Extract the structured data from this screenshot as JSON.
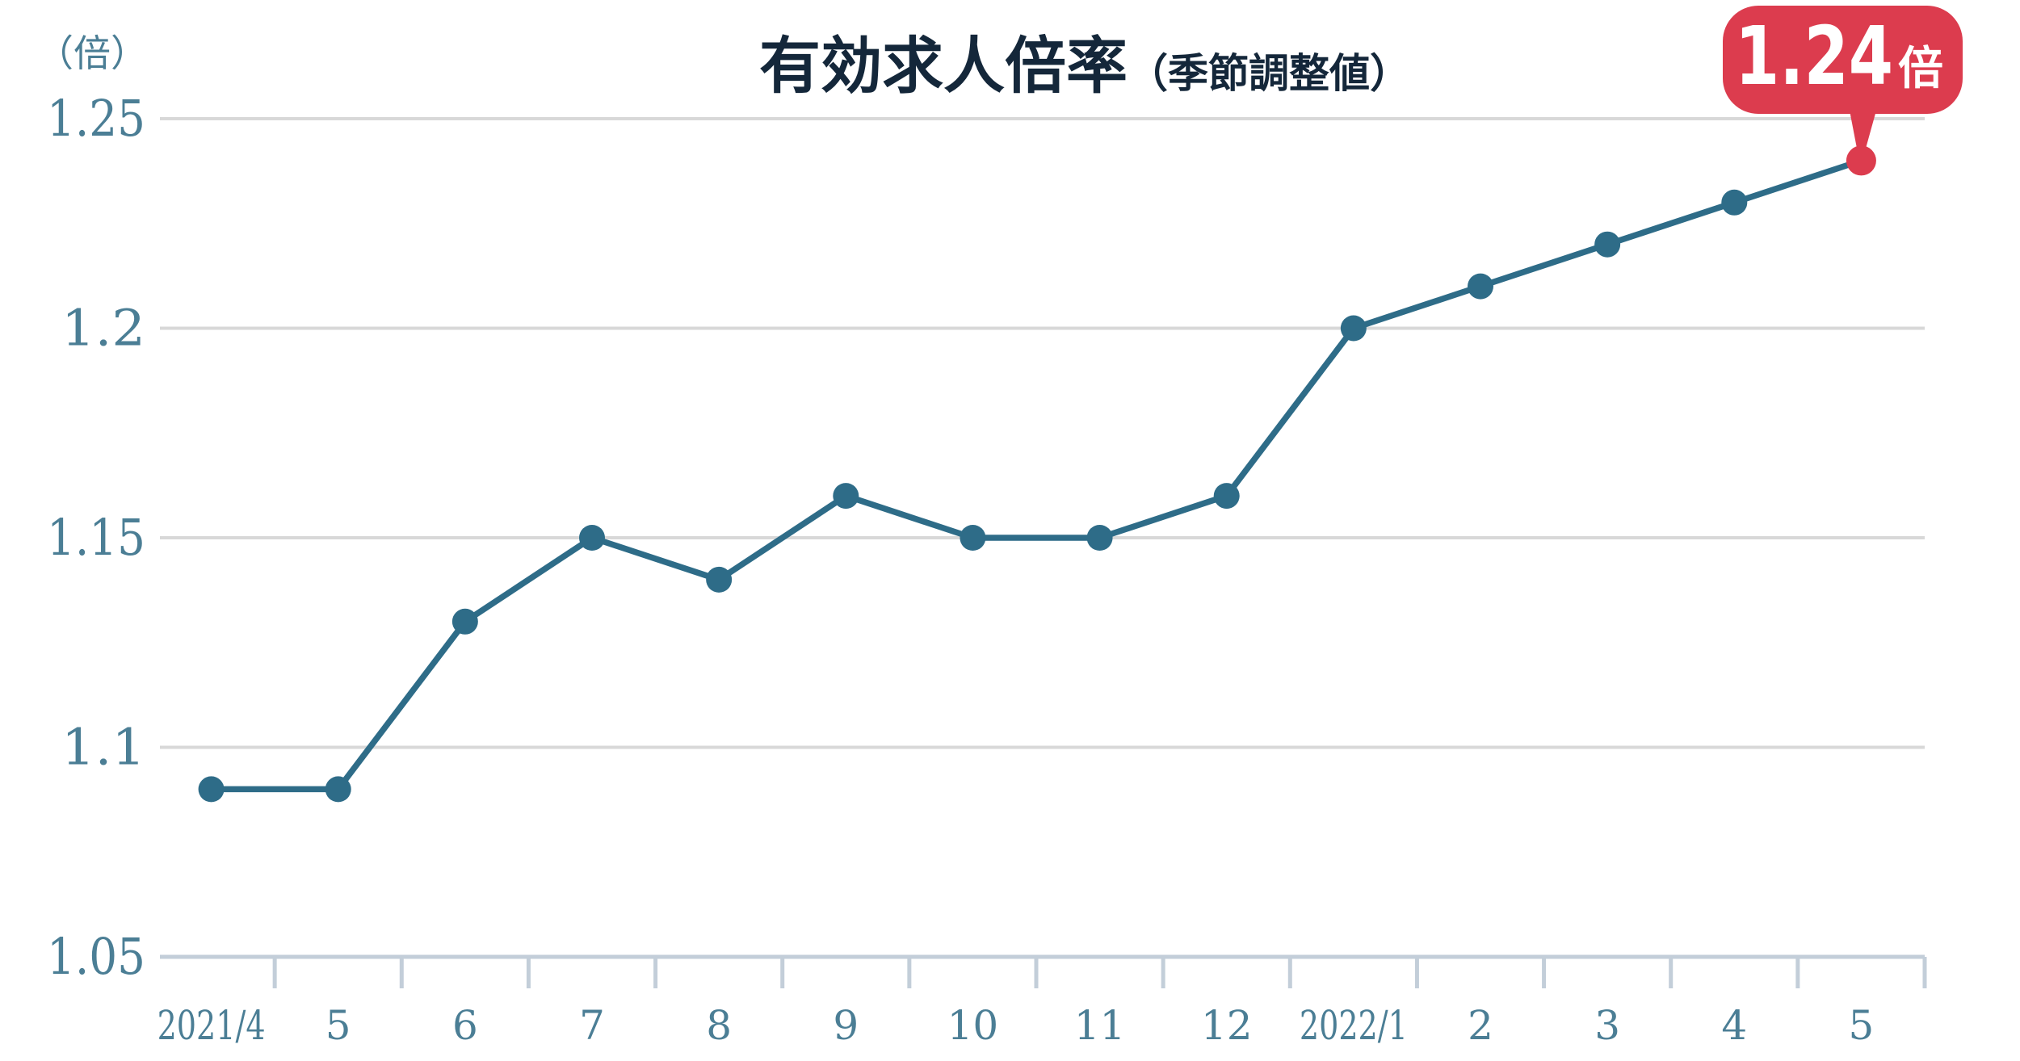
{
  "chart_data": {
    "type": "line",
    "title": "有効求人倍率",
    "title_suffix": "（季節調整値）",
    "unit_label": "（倍）",
    "categories": [
      "2021/4",
      "5",
      "6",
      "7",
      "8",
      "9",
      "10",
      "11",
      "12",
      "2022/1",
      "2",
      "3",
      "4",
      "5"
    ],
    "series": [
      {
        "name": "有効求人倍率（季節調整値）",
        "values": [
          1.09,
          1.09,
          1.13,
          1.15,
          1.14,
          1.16,
          1.15,
          1.15,
          1.16,
          1.2,
          1.21,
          1.22,
          1.23,
          1.24
        ]
      }
    ],
    "ylim": [
      1.05,
      1.25
    ],
    "ytick_labels": [
      "1.05",
      "1.1",
      "1.15",
      "1.2",
      "1.25"
    ],
    "ytick_values": [
      1.05,
      1.1,
      1.15,
      1.2,
      1.25
    ],
    "grid": "horizontal",
    "legend": "none",
    "highlight": {
      "index": 13,
      "label": "1.24",
      "label_suffix": "倍"
    },
    "colors": {
      "line": "#2e6c88",
      "point": "#2e6c88",
      "highlight": "#dc3c4e",
      "axis_label": "#4b7e95",
      "title": "#14273a",
      "gridline": "#d8d8d8",
      "axis_line": "#c3ced9",
      "badge_text": "#ffffff",
      "background": "#ffffff"
    }
  }
}
